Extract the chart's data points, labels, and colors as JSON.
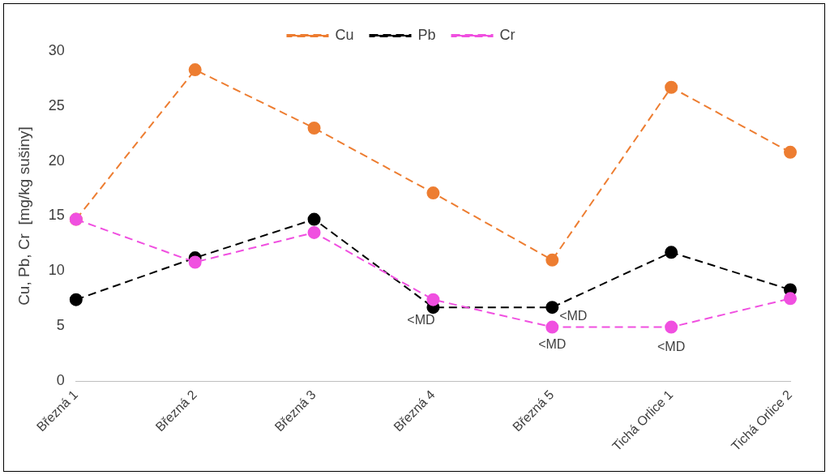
{
  "chart_data": {
    "type": "line",
    "ylabel": "Cu, Pb, Cr  [mg/kg sušiny]",
    "categories": [
      "Březná 1",
      "Březná 2",
      "Březná 3",
      "Březná 4",
      "Březná 5",
      "Tichá Orlice 1",
      "Tichá Orlice 2"
    ],
    "series": [
      {
        "name": "Cu",
        "color": "#ed7d31",
        "values": [
          14.7,
          28.3,
          23.0,
          17.1,
          11.0,
          26.7,
          20.8
        ]
      },
      {
        "name": "Pb",
        "color": "#000000",
        "values": [
          7.4,
          11.2,
          14.7,
          6.7,
          6.7,
          11.7,
          8.3
        ]
      },
      {
        "name": "Cr",
        "color": "#f050e0",
        "values": [
          14.7,
          10.8,
          13.5,
          7.4,
          4.9,
          4.9,
          7.5
        ]
      }
    ],
    "ylim": [
      0,
      30
    ],
    "yticks": [
      0,
      5,
      10,
      15,
      20,
      25,
      30
    ],
    "grid": false,
    "legend": "top",
    "marker": "circle",
    "line_style": "dashed",
    "annotations": [
      {
        "text": "<MD",
        "x": "Březná 4",
        "y": 6.7
      },
      {
        "text": "<MD",
        "x": "Březná 5",
        "y": 6.7
      },
      {
        "text": "<MD",
        "x": "Březná 5",
        "y": 4.9
      },
      {
        "text": "<MD",
        "x": "Tichá Orlice 1",
        "y": 4.9
      }
    ]
  }
}
